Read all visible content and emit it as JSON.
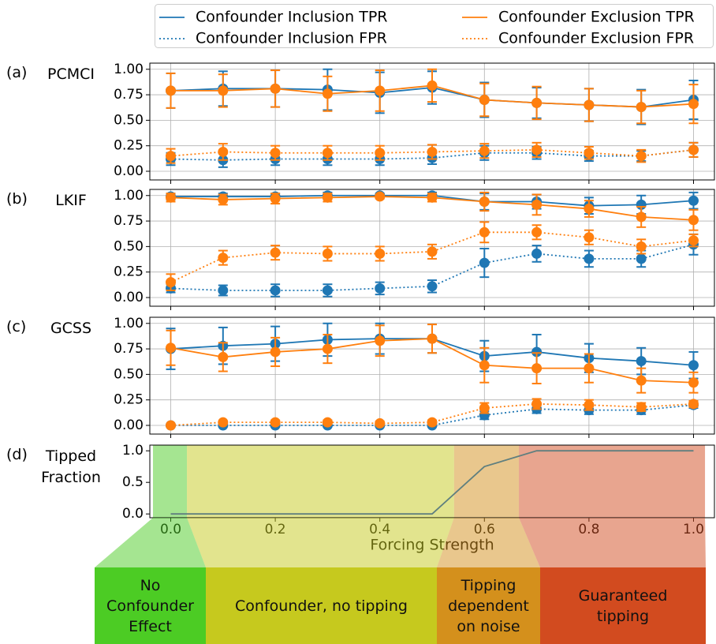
{
  "chart_data": [
    {
      "type": "line",
      "label": "(a)",
      "title": "PCMCI",
      "x": [
        0,
        0.1,
        0.2,
        0.3,
        0.4,
        0.5,
        0.6,
        0.7,
        0.8,
        0.9,
        1.0
      ],
      "xlim": [
        -0.04,
        1.04
      ],
      "xticks": [
        0,
        0.2,
        0.4,
        0.6,
        0.8,
        1
      ],
      "ylim": [
        -0.085,
        1.06
      ],
      "yticks": [
        {
          "value": 0,
          "label": "0.00"
        },
        0.25,
        {
          "value": 0.5,
          "label": "0.50"
        },
        0.75,
        {
          "value": 1,
          "label": "1.00"
        }
      ],
      "grid": true,
      "series": [
        {
          "name": "Confounder Inclusion TPR",
          "color": "#1f77b4",
          "linestyle": "solid",
          "values": [
            0.79,
            0.81,
            0.81,
            0.8,
            0.77,
            0.82,
            0.7,
            0.67,
            0.65,
            0.63,
            0.7
          ],
          "errors": [
            0.17,
            0.17,
            0.18,
            0.2,
            0.2,
            0.16,
            0.17,
            0.15,
            0.16,
            0.17,
            0.19
          ]
        },
        {
          "name": "Confounder Inclusion FPR",
          "color": "#1f77b4",
          "linestyle": "dotted",
          "values": [
            0.12,
            0.11,
            0.12,
            0.12,
            0.12,
            0.13,
            0.18,
            0.18,
            0.15,
            0.15,
            0.21
          ],
          "errors": [
            0.06,
            0.07,
            0.06,
            0.06,
            0.06,
            0.06,
            0.07,
            0.06,
            0.05,
            0.05,
            0.07
          ]
        },
        {
          "name": "Confounder Exclusion TPR",
          "color": "#ff7f0e",
          "linestyle": "solid",
          "values": [
            0.79,
            0.79,
            0.81,
            0.76,
            0.79,
            0.84,
            0.7,
            0.67,
            0.65,
            0.63,
            0.66
          ],
          "errors": [
            0.17,
            0.16,
            0.18,
            0.17,
            0.2,
            0.16,
            0.16,
            0.16,
            0.16,
            0.16,
            0.19
          ]
        },
        {
          "name": "Confounder Exclusion FPR",
          "color": "#ff7f0e",
          "linestyle": "dotted",
          "values": [
            0.15,
            0.19,
            0.18,
            0.18,
            0.18,
            0.19,
            0.2,
            0.21,
            0.18,
            0.15,
            0.21
          ],
          "errors": [
            0.07,
            0.08,
            0.07,
            0.07,
            0.07,
            0.07,
            0.07,
            0.07,
            0.06,
            0.06,
            0.07
          ]
        }
      ]
    },
    {
      "type": "line",
      "label": "(b)",
      "title": "LKIF",
      "x": [
        0,
        0.1,
        0.2,
        0.3,
        0.4,
        0.5,
        0.6,
        0.7,
        0.8,
        0.9,
        1.0
      ],
      "xlim": [
        -0.04,
        1.04
      ],
      "xticks": [
        0,
        0.2,
        0.4,
        0.6,
        0.8,
        1
      ],
      "ylim": [
        -0.085,
        1.06
      ],
      "yticks": [
        {
          "value": 0,
          "label": "0.00"
        },
        0.25,
        {
          "value": 0.5,
          "label": "0.50"
        },
        0.75,
        {
          "value": 1,
          "label": "1.00"
        }
      ],
      "grid": true,
      "series": [
        {
          "color": "#1f77b4",
          "linestyle": "solid",
          "values": [
            0.99,
            0.99,
            0.99,
            1.0,
            1.0,
            1.0,
            0.94,
            0.94,
            0.9,
            0.91,
            0.95
          ],
          "errors": [
            0.03,
            0.03,
            0.03,
            0.03,
            0.02,
            0.03,
            0.08,
            0.07,
            0.08,
            0.09,
            0.08
          ]
        },
        {
          "color": "#1f77b4",
          "linestyle": "dotted",
          "values": [
            0.09,
            0.07,
            0.07,
            0.07,
            0.09,
            0.11,
            0.34,
            0.43,
            0.38,
            0.38,
            0.52
          ],
          "errors": [
            0.04,
            0.05,
            0.06,
            0.06,
            0.06,
            0.06,
            0.14,
            0.08,
            0.08,
            0.08,
            0.1
          ]
        },
        {
          "color": "#ff7f0e",
          "linestyle": "solid",
          "values": [
            0.98,
            0.96,
            0.97,
            0.98,
            0.99,
            0.98,
            0.94,
            0.91,
            0.87,
            0.79,
            0.76
          ],
          "errors": [
            0.04,
            0.05,
            0.05,
            0.04,
            0.02,
            0.04,
            0.09,
            0.1,
            0.08,
            0.1,
            0.1
          ]
        },
        {
          "color": "#ff7f0e",
          "linestyle": "dotted",
          "values": [
            0.15,
            0.39,
            0.44,
            0.43,
            0.43,
            0.45,
            0.64,
            0.64,
            0.59,
            0.5,
            0.56
          ],
          "errors": [
            0.08,
            0.07,
            0.07,
            0.07,
            0.07,
            0.07,
            0.1,
            0.07,
            0.07,
            0.07,
            0.06
          ]
        }
      ]
    },
    {
      "type": "line",
      "label": "(c)",
      "title": "GCSS",
      "x": [
        0,
        0.1,
        0.2,
        0.3,
        0.4,
        0.5,
        0.6,
        0.7,
        0.8,
        0.9,
        1.0
      ],
      "xlim": [
        -0.04,
        1.04
      ],
      "xticks": [
        0,
        0.2,
        0.4,
        0.6,
        0.8,
        1
      ],
      "ylim": [
        -0.085,
        1.06
      ],
      "yticks": [
        {
          "value": 0,
          "label": "0.00"
        },
        0.25,
        {
          "value": 0.5,
          "label": "0.50"
        },
        0.75,
        {
          "value": 1,
          "label": "1.00"
        }
      ],
      "grid": true,
      "series": [
        {
          "color": "#1f77b4",
          "linestyle": "solid",
          "values": [
            0.75,
            0.78,
            0.8,
            0.84,
            0.85,
            0.85,
            0.68,
            0.72,
            0.66,
            0.63,
            0.59
          ],
          "errors": [
            0.2,
            0.18,
            0.17,
            0.16,
            0.15,
            0.14,
            0.15,
            0.17,
            0.14,
            0.13,
            0.13
          ]
        },
        {
          "color": "#1f77b4",
          "linestyle": "dotted",
          "values": [
            0,
            0,
            0,
            0,
            0,
            0,
            0.1,
            0.16,
            0.15,
            0.15,
            0.2
          ],
          "errors": [
            0,
            0.01,
            0.01,
            0.01,
            0.01,
            0.01,
            0.04,
            0.04,
            0.04,
            0.04,
            0.03
          ]
        },
        {
          "color": "#ff7f0e",
          "linestyle": "solid",
          "values": [
            0.76,
            0.67,
            0.72,
            0.75,
            0.83,
            0.85,
            0.59,
            0.56,
            0.56,
            0.44,
            0.42
          ],
          "errors": [
            0.17,
            0.14,
            0.14,
            0.14,
            0.15,
            0.14,
            0.17,
            0.15,
            0.14,
            0.12,
            0.1
          ]
        },
        {
          "color": "#ff7f0e",
          "linestyle": "dotted",
          "values": [
            0,
            0.03,
            0.03,
            0.03,
            0.02,
            0.03,
            0.17,
            0.21,
            0.2,
            0.18,
            0.21
          ],
          "errors": [
            0,
            0.01,
            0.02,
            0.02,
            0.02,
            0.02,
            0.05,
            0.05,
            0.05,
            0.04,
            0.03
          ]
        }
      ]
    },
    {
      "type": "line",
      "label": "(d)",
      "title": "Tipped Fraction",
      "xlabel": "Forcing Strength",
      "x": [
        0,
        0.1,
        0.2,
        0.3,
        0.4,
        0.5,
        0.6,
        0.7,
        0.8,
        0.9,
        1.0
      ],
      "xlim": [
        -0.04,
        1.04
      ],
      "xticks": [
        {
          "value": 0,
          "label": "0.0"
        },
        0.2,
        0.4,
        0.6,
        0.8,
        {
          "value": 1,
          "label": "1.0"
        }
      ],
      "ylim": [
        -0.06,
        1.09
      ],
      "yticks": [
        {
          "value": 0,
          "label": "0.0"
        },
        0.5,
        {
          "value": 1,
          "label": "1.0"
        }
      ],
      "grid": false,
      "series": [
        {
          "color": "#5f7f7f",
          "linestyle": "solid",
          "values": [
            0,
            0,
            0,
            0,
            0,
            0,
            0.75,
            1,
            1,
            1,
            1
          ]
        }
      ],
      "spans": [
        {
          "label": "No Confounder Effect",
          "color": "#4ccc24",
          "xrange": [
            -0.034,
            0.031
          ]
        },
        {
          "label": "Confounder, no tipping",
          "color": "#c6c91e",
          "xrange": [
            0.031,
            0.542
          ]
        },
        {
          "label": "Tipping dependent on noise",
          "color": "#d4901c",
          "xrange": [
            0.542,
            0.666
          ]
        },
        {
          "label": "Guaranteed tipping",
          "color": "#d24b1f",
          "xrange": [
            0.666,
            1.022
          ]
        }
      ]
    }
  ]
}
